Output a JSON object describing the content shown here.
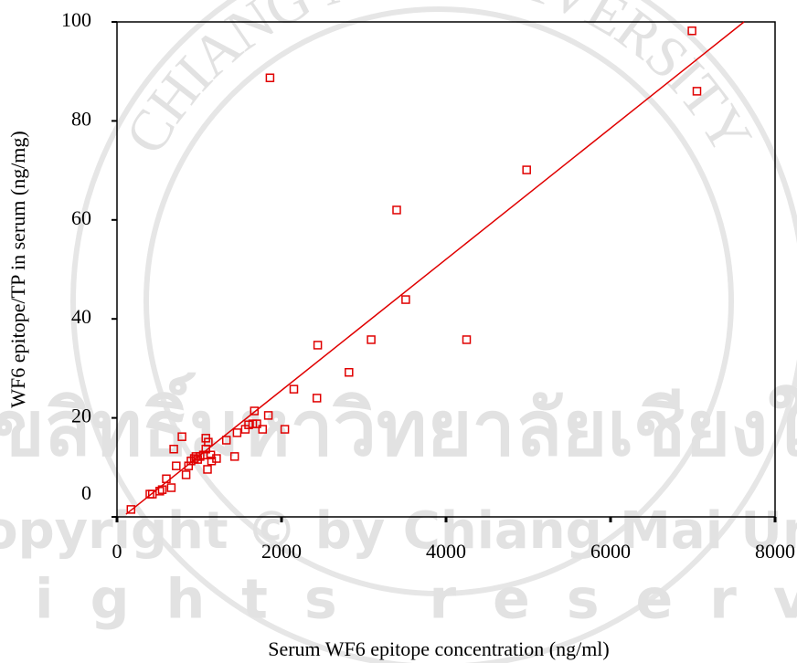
{
  "chart_data": {
    "type": "scatter",
    "x_label": "Serum WF6 epitope concentration (ng/ml)",
    "y_label": "WF6 epitope/TP in serum (ng/mg)",
    "xlim": [
      0,
      8000
    ],
    "xticks": [
      0,
      2000,
      4000,
      6000,
      8000
    ],
    "ylim": [
      0,
      100
    ],
    "yticks": [
      0,
      20,
      40,
      60,
      80,
      100
    ],
    "series": [
      {
        "color": "#e00000",
        "x": [
          170,
          400,
          430,
          520,
          550,
          600,
          660,
          690,
          720,
          790,
          840,
          870,
          900,
          940,
          960,
          980,
          1010,
          1050,
          1080,
          1080,
          1100,
          1110,
          1150,
          1140,
          1210,
          1330,
          1430,
          1460,
          1560,
          1600,
          1650,
          1670,
          1700,
          1770,
          1840,
          1860,
          2040,
          2150,
          2430,
          2440,
          2820,
          3090,
          3400,
          3510,
          4250,
          4980,
          6990,
          7050
        ],
        "values": [
          1.5,
          4.6,
          4.6,
          5.2,
          5.5,
          7.7,
          5.9,
          13.7,
          10.3,
          16.2,
          8.5,
          10.3,
          11.3,
          11.8,
          12.2,
          11.6,
          12.2,
          12.5,
          15.9,
          13.7,
          9.6,
          15.1,
          11.3,
          12.5,
          11.8,
          15.5,
          12.2,
          17.0,
          17.7,
          18.6,
          18.8,
          21.4,
          18.8,
          17.7,
          20.5,
          88.7,
          17.7,
          25.8,
          24.0,
          34.7,
          29.2,
          35.8,
          62.0,
          43.9,
          35.8,
          70.1,
          98.2,
          86.0
        ]
      }
    ],
    "fit": {
      "color": "#e00000",
      "slope": 0.01324,
      "intercept": -0.92,
      "x_start": 110
    },
    "watermark": {
      "seal": "CHIANG MAI UNIVERSITY",
      "thai": "ลิขสิทธิ์มหาวิทยาลัยเชียงใหม่",
      "copyright": "Copyright © by Chiang Mai University",
      "rights": "All rights reserved"
    }
  }
}
